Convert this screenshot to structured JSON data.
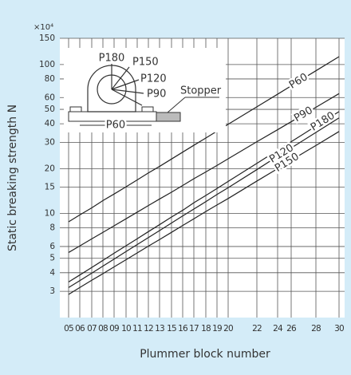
{
  "chart_data": {
    "type": "line",
    "y_unit": "×10⁴",
    "ylabel": "Static breaking strength  N",
    "xlabel": "Plummer block number",
    "log_scale": true,
    "grid": true,
    "annotations": [
      "Stopper"
    ],
    "categories": [
      "05",
      "06",
      "07",
      "08",
      "09",
      "10",
      "11",
      "12",
      "13",
      "15",
      "16",
      "17",
      "18",
      "19",
      "20",
      "22",
      "24",
      "26",
      "28",
      "30"
    ],
    "ylim": [
      2,
      150
    ],
    "yticks": [
      3,
      4,
      5,
      6,
      8,
      10,
      15,
      20,
      30,
      40,
      50,
      60,
      80,
      100,
      150
    ],
    "series": [
      {
        "name": "P60",
        "color": "#222222",
        "values": [
          8.79,
          9.77,
          10.9,
          12.2,
          13.5,
          15.1,
          16.8,
          18.7,
          20.7,
          23.2,
          25.8,
          28.7,
          32.1,
          35.7,
          39.7,
          52.0,
          63.2,
          71.9,
          90.8,
          113
        ]
      },
      {
        "name": "P90",
        "color": "#222222",
        "values": [
          5.47,
          6.05,
          6.75,
          7.46,
          8.26,
          9.21,
          10.2,
          11.3,
          12.5,
          13.9,
          15.4,
          17.1,
          19.0,
          21.0,
          23.3,
          30.3,
          36.5,
          41.3,
          51.6,
          63.8
        ]
      },
      {
        "name": "P180",
        "color": "#222222",
        "values": [
          3.47,
          3.86,
          4.34,
          4.84,
          5.41,
          6.07,
          6.76,
          7.55,
          8.41,
          9.46,
          10.5,
          11.8,
          13.2,
          14.7,
          16.4,
          21.7,
          26.6,
          30.3,
          38.6,
          48.3
        ]
      },
      {
        "name": "P120",
        "color": "#222222",
        "values": [
          3.18,
          3.54,
          3.97,
          4.43,
          4.94,
          5.55,
          6.18,
          6.89,
          7.67,
          8.63,
          9.62,
          10.7,
          12.0,
          13.4,
          14.9,
          19.7,
          24.2,
          27.5,
          35.0,
          43.8
        ]
      },
      {
        "name": "P150",
        "color": "#222222",
        "values": [
          2.86,
          3.18,
          3.56,
          3.94,
          4.38,
          4.89,
          5.43,
          6.03,
          6.68,
          7.47,
          8.3,
          9.2,
          10.3,
          11.4,
          12.6,
          16.5,
          20.0,
          22.8,
          28.6,
          35.5
        ]
      }
    ]
  }
}
